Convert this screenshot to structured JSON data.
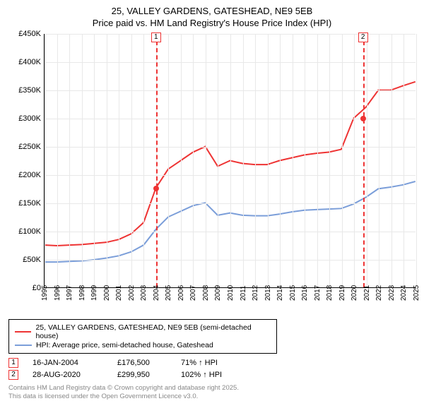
{
  "title_line1": "25, VALLEY GARDENS, GATESHEAD, NE9 5EB",
  "title_line2": "Price paid vs. HM Land Registry's House Price Index (HPI)",
  "chart": {
    "type": "line",
    "background_color": "#ffffff",
    "grid_color": "#e8e8e8",
    "axis_color": "#000000",
    "label_fontsize": 11,
    "ylim": [
      0,
      450000
    ],
    "ytick_step": 50000,
    "ytick_labels": [
      "£0",
      "£50K",
      "£100K",
      "£150K",
      "£200K",
      "£250K",
      "£300K",
      "£350K",
      "£400K",
      "£450K"
    ],
    "x_years": [
      1995,
      1996,
      1997,
      1998,
      1999,
      2000,
      2001,
      2002,
      2003,
      2004,
      2005,
      2006,
      2007,
      2008,
      2009,
      2010,
      2011,
      2012,
      2013,
      2014,
      2015,
      2016,
      2017,
      2018,
      2019,
      2020,
      2021,
      2022,
      2023,
      2024,
      2025
    ],
    "series": [
      {
        "name": "25, VALLEY GARDENS, GATESHEAD, NE9 5EB (semi-detached house)",
        "color": "#ee3333",
        "line_width": 2,
        "values_by_year": {
          "1995": 75000,
          "1996": 74000,
          "1997": 75000,
          "1998": 76000,
          "1999": 78000,
          "2000": 80000,
          "2001": 85000,
          "2002": 95000,
          "2003": 115000,
          "2004": 176500,
          "2005": 210000,
          "2006": 225000,
          "2007": 240000,
          "2008": 250000,
          "2009": 215000,
          "2010": 225000,
          "2011": 220000,
          "2012": 218000,
          "2013": 218000,
          "2014": 225000,
          "2015": 230000,
          "2016": 235000,
          "2017": 238000,
          "2018": 240000,
          "2019": 245000,
          "2020": 299950,
          "2021": 320000,
          "2022": 350000,
          "2023": 350000,
          "2024": 358000,
          "2025": 365000
        }
      },
      {
        "name": "HPI: Average price, semi-detached house, Gateshead",
        "color": "#7b9ed9",
        "line_width": 2,
        "values_by_year": {
          "1995": 45000,
          "1996": 45000,
          "1997": 46000,
          "1998": 47000,
          "1999": 49000,
          "2000": 52000,
          "2001": 56000,
          "2002": 63000,
          "2003": 75000,
          "2004": 103000,
          "2005": 125000,
          "2006": 135000,
          "2007": 145000,
          "2008": 150000,
          "2009": 128000,
          "2010": 132000,
          "2011": 128000,
          "2012": 127000,
          "2013": 127000,
          "2014": 130000,
          "2015": 134000,
          "2016": 137000,
          "2017": 138000,
          "2018": 139000,
          "2019": 140000,
          "2020": 148000,
          "2021": 160000,
          "2022": 175000,
          "2023": 178000,
          "2024": 182000,
          "2025": 188000
        }
      }
    ],
    "markers": [
      {
        "id": "1",
        "year": 2004,
        "value": 176500
      },
      {
        "id": "2",
        "year": 2020.7,
        "value": 299950
      }
    ]
  },
  "legend": {
    "items": [
      {
        "label": "25, VALLEY GARDENS, GATESHEAD, NE9 5EB (semi-detached house)",
        "color": "#ee3333"
      },
      {
        "label": "HPI: Average price, semi-detached house, Gateshead",
        "color": "#7b9ed9"
      }
    ]
  },
  "transactions": [
    {
      "id": "1",
      "date": "16-JAN-2004",
      "price": "£176,500",
      "hpi": "71% ↑ HPI"
    },
    {
      "id": "2",
      "date": "28-AUG-2020",
      "price": "£299,950",
      "hpi": "102% ↑ HPI"
    }
  ],
  "footer_line1": "Contains HM Land Registry data © Crown copyright and database right 2025.",
  "footer_line2": "This data is licensed under the Open Government Licence v3.0."
}
